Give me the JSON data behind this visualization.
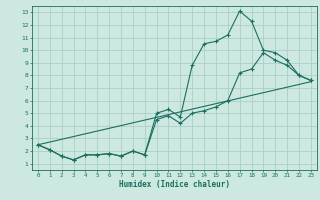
{
  "xlabel": "Humidex (Indice chaleur)",
  "bg_color": "#cce8e0",
  "grid_color": "#aad0c8",
  "line_color": "#1a6e60",
  "xlim": [
    -0.5,
    23.5
  ],
  "ylim": [
    0.5,
    13.5
  ],
  "xticks": [
    0,
    1,
    2,
    3,
    4,
    5,
    6,
    7,
    8,
    9,
    10,
    11,
    12,
    13,
    14,
    15,
    16,
    17,
    18,
    19,
    20,
    21,
    22,
    23
  ],
  "yticks": [
    1,
    2,
    3,
    4,
    5,
    6,
    7,
    8,
    9,
    10,
    11,
    12,
    13
  ],
  "line1_x": [
    0,
    1,
    2,
    3,
    4,
    5,
    6,
    7,
    8,
    9,
    10,
    11,
    12,
    13,
    14,
    15,
    16,
    17,
    18,
    19,
    20,
    21,
    22,
    23
  ],
  "line1_y": [
    2.5,
    2.1,
    1.6,
    1.3,
    1.7,
    1.7,
    1.8,
    1.6,
    2.0,
    1.7,
    5.0,
    5.3,
    4.7,
    8.8,
    10.5,
    10.7,
    11.2,
    13.1,
    12.3,
    10.0,
    9.8,
    9.2,
    8.0,
    7.6
  ],
  "line2_x": [
    0,
    1,
    2,
    3,
    4,
    5,
    6,
    7,
    8,
    9,
    10,
    11,
    12,
    13,
    14,
    15,
    16,
    17,
    18,
    19,
    20,
    21,
    22,
    23
  ],
  "line2_y": [
    2.5,
    2.1,
    1.6,
    1.3,
    1.7,
    1.7,
    1.8,
    1.6,
    2.0,
    1.7,
    4.5,
    4.8,
    4.2,
    5.0,
    5.2,
    5.5,
    6.0,
    8.2,
    8.5,
    9.8,
    9.2,
    8.8,
    8.0,
    7.6
  ],
  "line3_x": [
    0,
    23
  ],
  "line3_y": [
    2.5,
    7.5
  ]
}
